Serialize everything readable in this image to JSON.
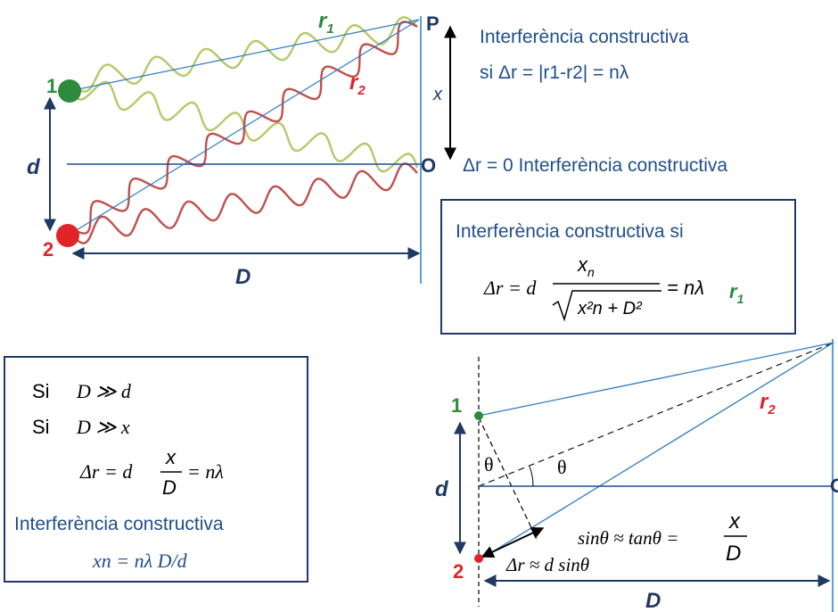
{
  "top": {
    "label_1": "1",
    "label_2": "2",
    "label_P": "P",
    "label_O": "O",
    "label_x": "x",
    "label_d": "d",
    "label_D": "D",
    "label_r1": "r",
    "label_r1_sub": "1",
    "label_r2": "r",
    "label_r2_sub": "2",
    "heading": "Interferència constructiva",
    "condition": "si Δr = |r1-r2| = nλ",
    "zero_condition": "Δr = 0 Interferència constructiva"
  },
  "box_exact": {
    "title": "Interferència constructiva si",
    "lhs": "Δr = d",
    "numerator": "x",
    "numerator_sub": "n",
    "denominator": "x²n + D²",
    "rhs": "= nλ",
    "r1": "r",
    "r1_sub": "1"
  },
  "box_approx": {
    "line1_si": "Si",
    "line1": "D ≫ d",
    "line2_si": "Si",
    "line2": "D ≫ x",
    "eq_lhs": "Δr = d",
    "eq_num": "x",
    "eq_den": "D",
    "eq_rhs": "= nλ",
    "heading": "Interferència constructiva",
    "result": "xn = nλ D/d"
  },
  "bottom": {
    "label_1": "1",
    "label_2": "2",
    "label_d": "d",
    "label_D": "D",
    "label_r2": "r",
    "label_r2_sub": "2",
    "label_O": "O",
    "theta": "θ",
    "sin_eq": "sinθ ≈ tanθ =",
    "frac_num": "x",
    "frac_den": "D",
    "path_diff": "Δr ≈ d sinθ"
  },
  "colors": {
    "green_wave": "#b5c86a",
    "red_wave": "#c0504d",
    "line_blue": "#2f7cc4",
    "text_blue": "#1f4e8c",
    "green_dot": "#2e8b3e",
    "red_dot": "#e0242a",
    "label_green": "#2e8b3e",
    "label_red": "#e0242a"
  }
}
